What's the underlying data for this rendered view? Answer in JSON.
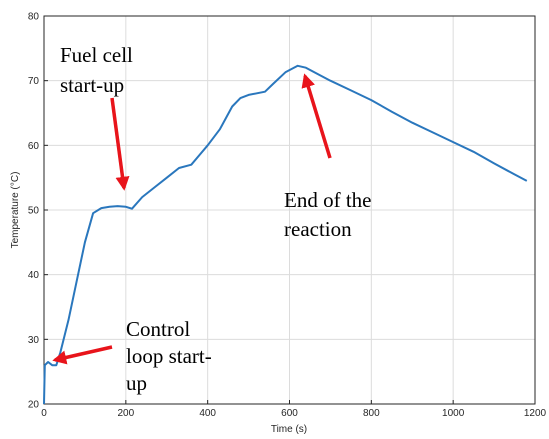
{
  "chart_data": {
    "type": "line",
    "x_label": "Time (s)",
    "y_label": "Temperature (°C)",
    "color": "#2a77bd",
    "grid": true,
    "xlim": [
      0,
      1200
    ],
    "xticks": [
      0,
      200,
      400,
      600,
      800,
      1000,
      1200
    ],
    "ylim": [
      20,
      80
    ],
    "yticks": [
      20,
      30,
      40,
      50,
      60,
      70,
      80
    ],
    "x": [
      0,
      2,
      10,
      20,
      30,
      40,
      60,
      80,
      100,
      120,
      140,
      160,
      180,
      200,
      215,
      240,
      270,
      300,
      330,
      360,
      380,
      400,
      430,
      460,
      480,
      500,
      540,
      560,
      590,
      620,
      640,
      670,
      700,
      750,
      800,
      850,
      900,
      950,
      1000,
      1050,
      1100,
      1150,
      1180
    ],
    "values": [
      20,
      26,
      26.5,
      26,
      26,
      28,
      33,
      39,
      45,
      49.5,
      50.3,
      50.5,
      50.6,
      50.5,
      50.2,
      52,
      53.5,
      55,
      56.5,
      57,
      58.5,
      60,
      62.5,
      66,
      67.3,
      67.8,
      68.3,
      69.5,
      71.3,
      72.3,
      72,
      71,
      70,
      68.5,
      67,
      65.2,
      63.5,
      62,
      60.5,
      59,
      57.2,
      55.5,
      54.5
    ],
    "annotations": [
      {
        "lines": [
          "Fuel cell",
          "start-up"
        ]
      },
      {
        "lines": [
          "End of the",
          "reaction"
        ]
      },
      {
        "lines": [
          "Control",
          "loop start-",
          "up"
        ]
      }
    ]
  }
}
